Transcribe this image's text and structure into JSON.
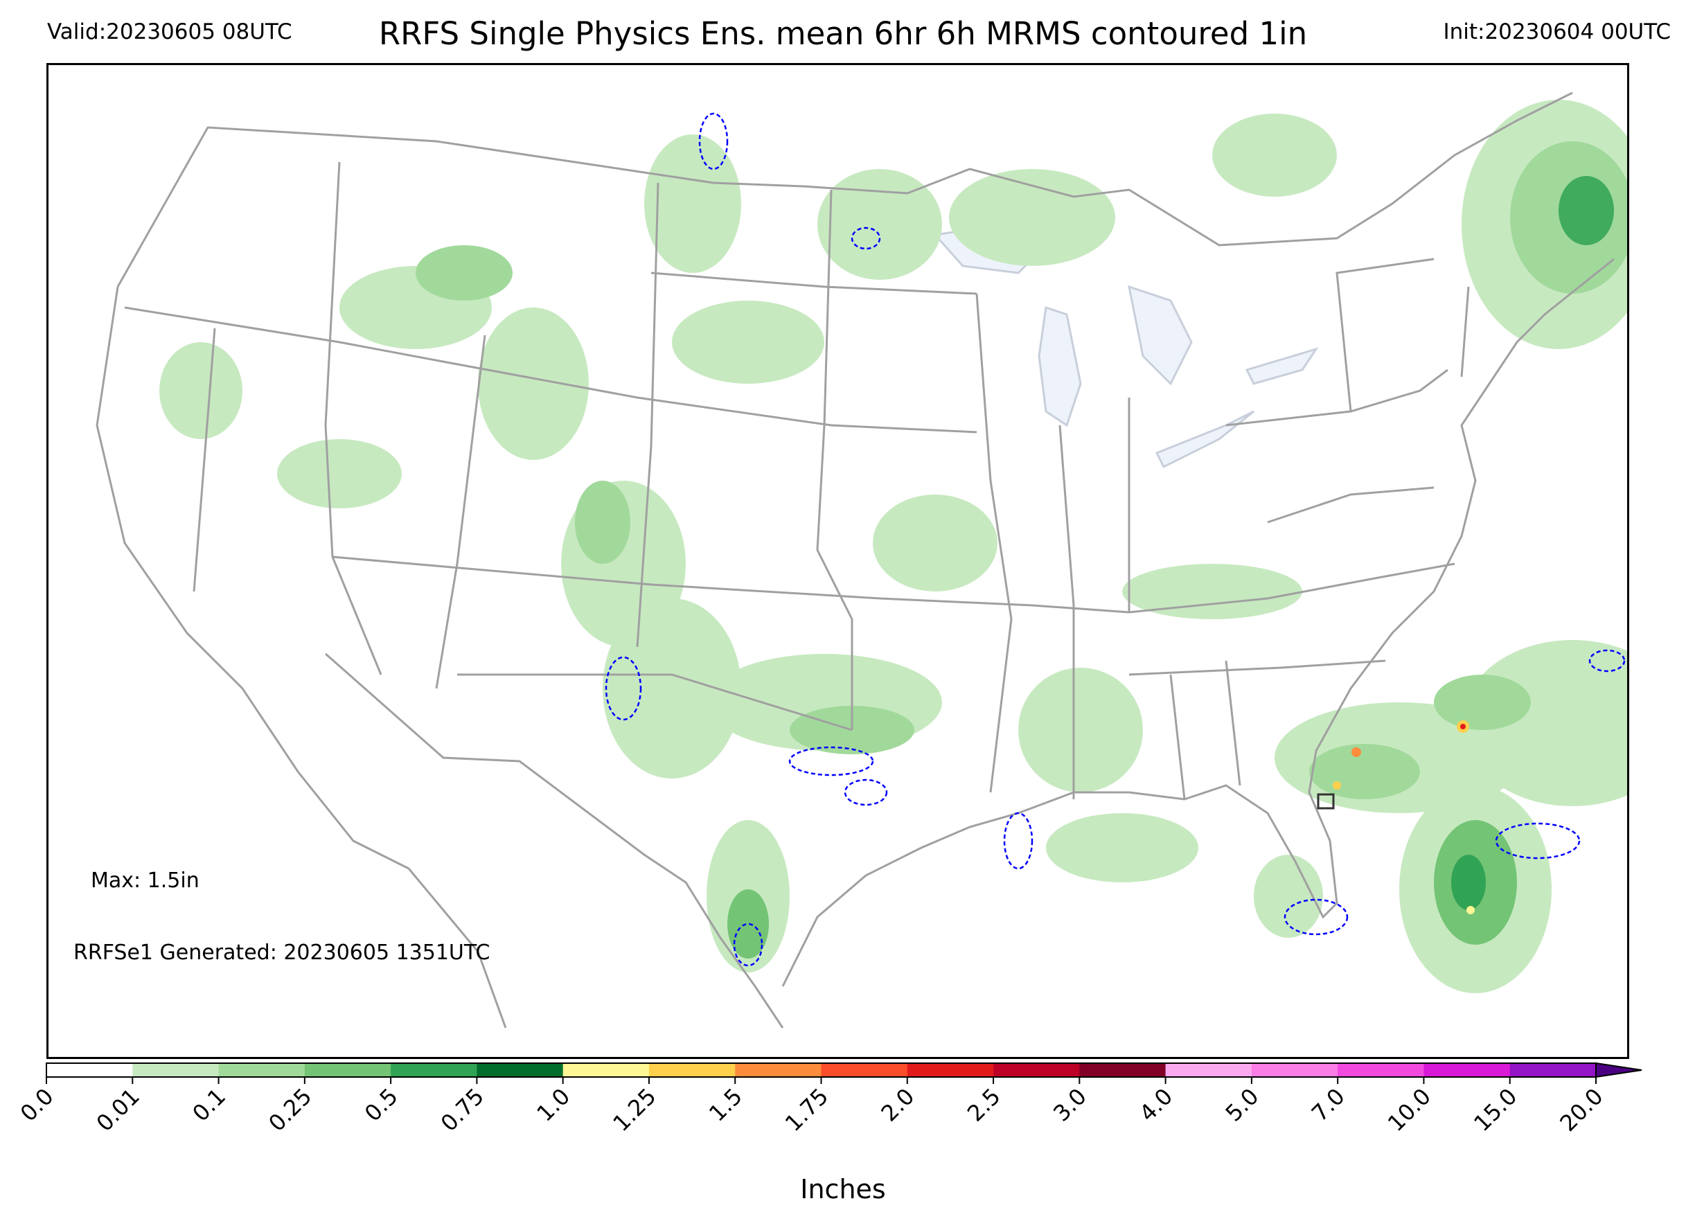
{
  "header": {
    "valid": "Valid:20230605 08UTC",
    "title": "RRFS Single Physics Ens. mean 6hr 6h MRMS contoured 1in",
    "init": "Init:20230604 00UTC"
  },
  "map": {
    "max_text": "Max: 1.5in",
    "generated_text": "RRFSe1 Generated: 20230605 1351UTC",
    "precip_color_light": "#c7e9c0",
    "precip_color_mid": "#a1d99b",
    "precip_color_dark": "#41ab5d",
    "contour_color": "#0000ff",
    "border_color": "#a0a0a0",
    "lake_color": "#eef3fb"
  },
  "colorbar": {
    "label": "Inches",
    "ticks": [
      "0.0",
      "0.01",
      "0.1",
      "0.25",
      "0.5",
      "0.75",
      "1.0",
      "1.25",
      "1.5",
      "1.75",
      "2.0",
      "2.5",
      "3.0",
      "4.0",
      "5.0",
      "7.0",
      "10.0",
      "15.0",
      "20.0"
    ],
    "colors": [
      "#ffffff",
      "#c7e9c0",
      "#a1d99b",
      "#74c476",
      "#31a354",
      "#006d2c",
      "#fff695",
      "#ffd04c",
      "#fd8d3c",
      "#fc4e2a",
      "#e31a1c",
      "#bd0026",
      "#800026",
      "#fcaaf0",
      "#fb7de6",
      "#f24adf",
      "#d81ad6",
      "#9314c4"
    ],
    "extend_color": "#4b0082"
  }
}
